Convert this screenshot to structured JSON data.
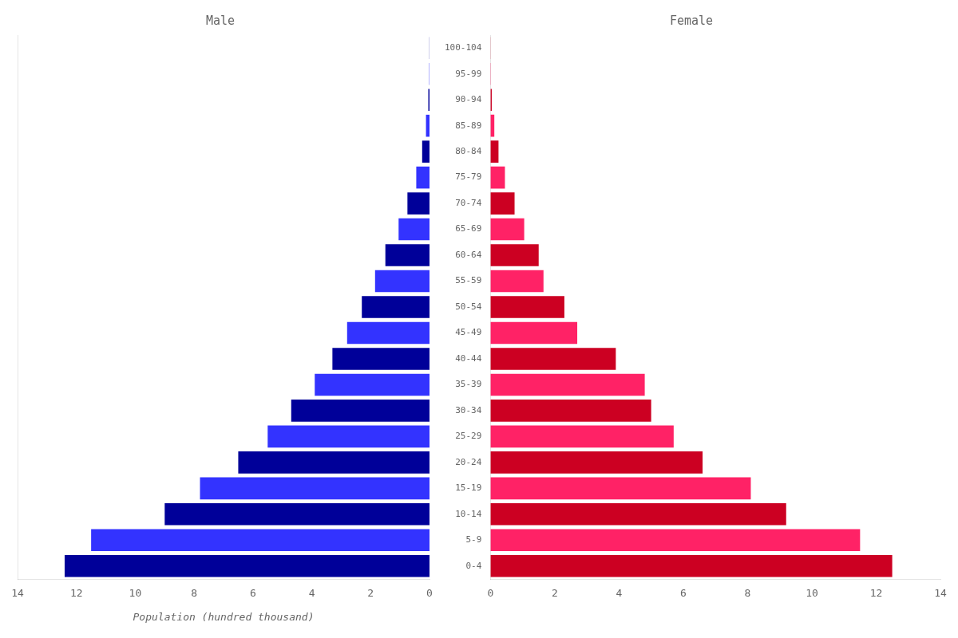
{
  "chart_data": [
    {
      "type": "bar",
      "orientation": "horizontal",
      "title": "Male",
      "xlabel": "Population (hundred thousand)",
      "categories": [
        "0-4",
        "5-9",
        "10-14",
        "15-19",
        "20-24",
        "25-29",
        "30-34",
        "35-39",
        "40-44",
        "45-49",
        "50-54",
        "55-59",
        "60-64",
        "65-69",
        "70-74",
        "75-79",
        "80-84",
        "85-89",
        "90-94",
        "95-99",
        "100-104"
      ],
      "values": [
        12.4,
        11.5,
        9.0,
        7.8,
        6.5,
        5.5,
        4.7,
        3.9,
        3.3,
        2.8,
        2.3,
        1.85,
        1.5,
        1.05,
        0.75,
        0.45,
        0.25,
        0.12,
        0.04,
        0.01,
        0.005
      ],
      "colors": [
        "#000099",
        "#3333ff",
        "#000099",
        "#3333ff",
        "#000099",
        "#3333ff",
        "#000099",
        "#3333ff",
        "#000099",
        "#3333ff",
        "#000099",
        "#3333ff",
        "#000099",
        "#3333ff",
        "#000099",
        "#3333ff",
        "#000099",
        "#3333ff",
        "#000099",
        "#3333ff",
        "#000099"
      ],
      "xlim": [
        14,
        0
      ],
      "xticks": [
        0,
        2,
        4,
        6,
        8,
        10,
        12,
        14
      ],
      "grid": false,
      "tick_labels": "x"
    },
    {
      "type": "bar",
      "orientation": "horizontal",
      "title": "Female",
      "categories": [
        "0-4",
        "5-9",
        "10-14",
        "15-19",
        "20-24",
        "25-29",
        "30-34",
        "35-39",
        "40-44",
        "45-49",
        "50-54",
        "55-59",
        "60-64",
        "65-69",
        "70-74",
        "75-79",
        "80-84",
        "85-89",
        "90-94",
        "95-99",
        "100-104"
      ],
      "values": [
        12.5,
        11.5,
        9.2,
        8.1,
        6.6,
        5.7,
        5.0,
        4.8,
        3.9,
        2.7,
        2.3,
        1.65,
        1.5,
        1.05,
        0.75,
        0.45,
        0.25,
        0.12,
        0.04,
        0.01,
        0.005
      ],
      "colors": [
        "#cc0022",
        "#ff2266",
        "#cc0022",
        "#ff2266",
        "#cc0022",
        "#ff2266",
        "#cc0022",
        "#ff2266",
        "#cc0022",
        "#ff2266",
        "#cc0022",
        "#ff2266",
        "#cc0022",
        "#ff2266",
        "#cc0022",
        "#ff2266",
        "#cc0022",
        "#ff2266",
        "#cc0022",
        "#ff2266",
        "#cc0022"
      ],
      "xlim": [
        0,
        14
      ],
      "xticks": [
        0,
        2,
        4,
        6,
        8,
        10,
        12,
        14
      ],
      "grid": false
    }
  ]
}
